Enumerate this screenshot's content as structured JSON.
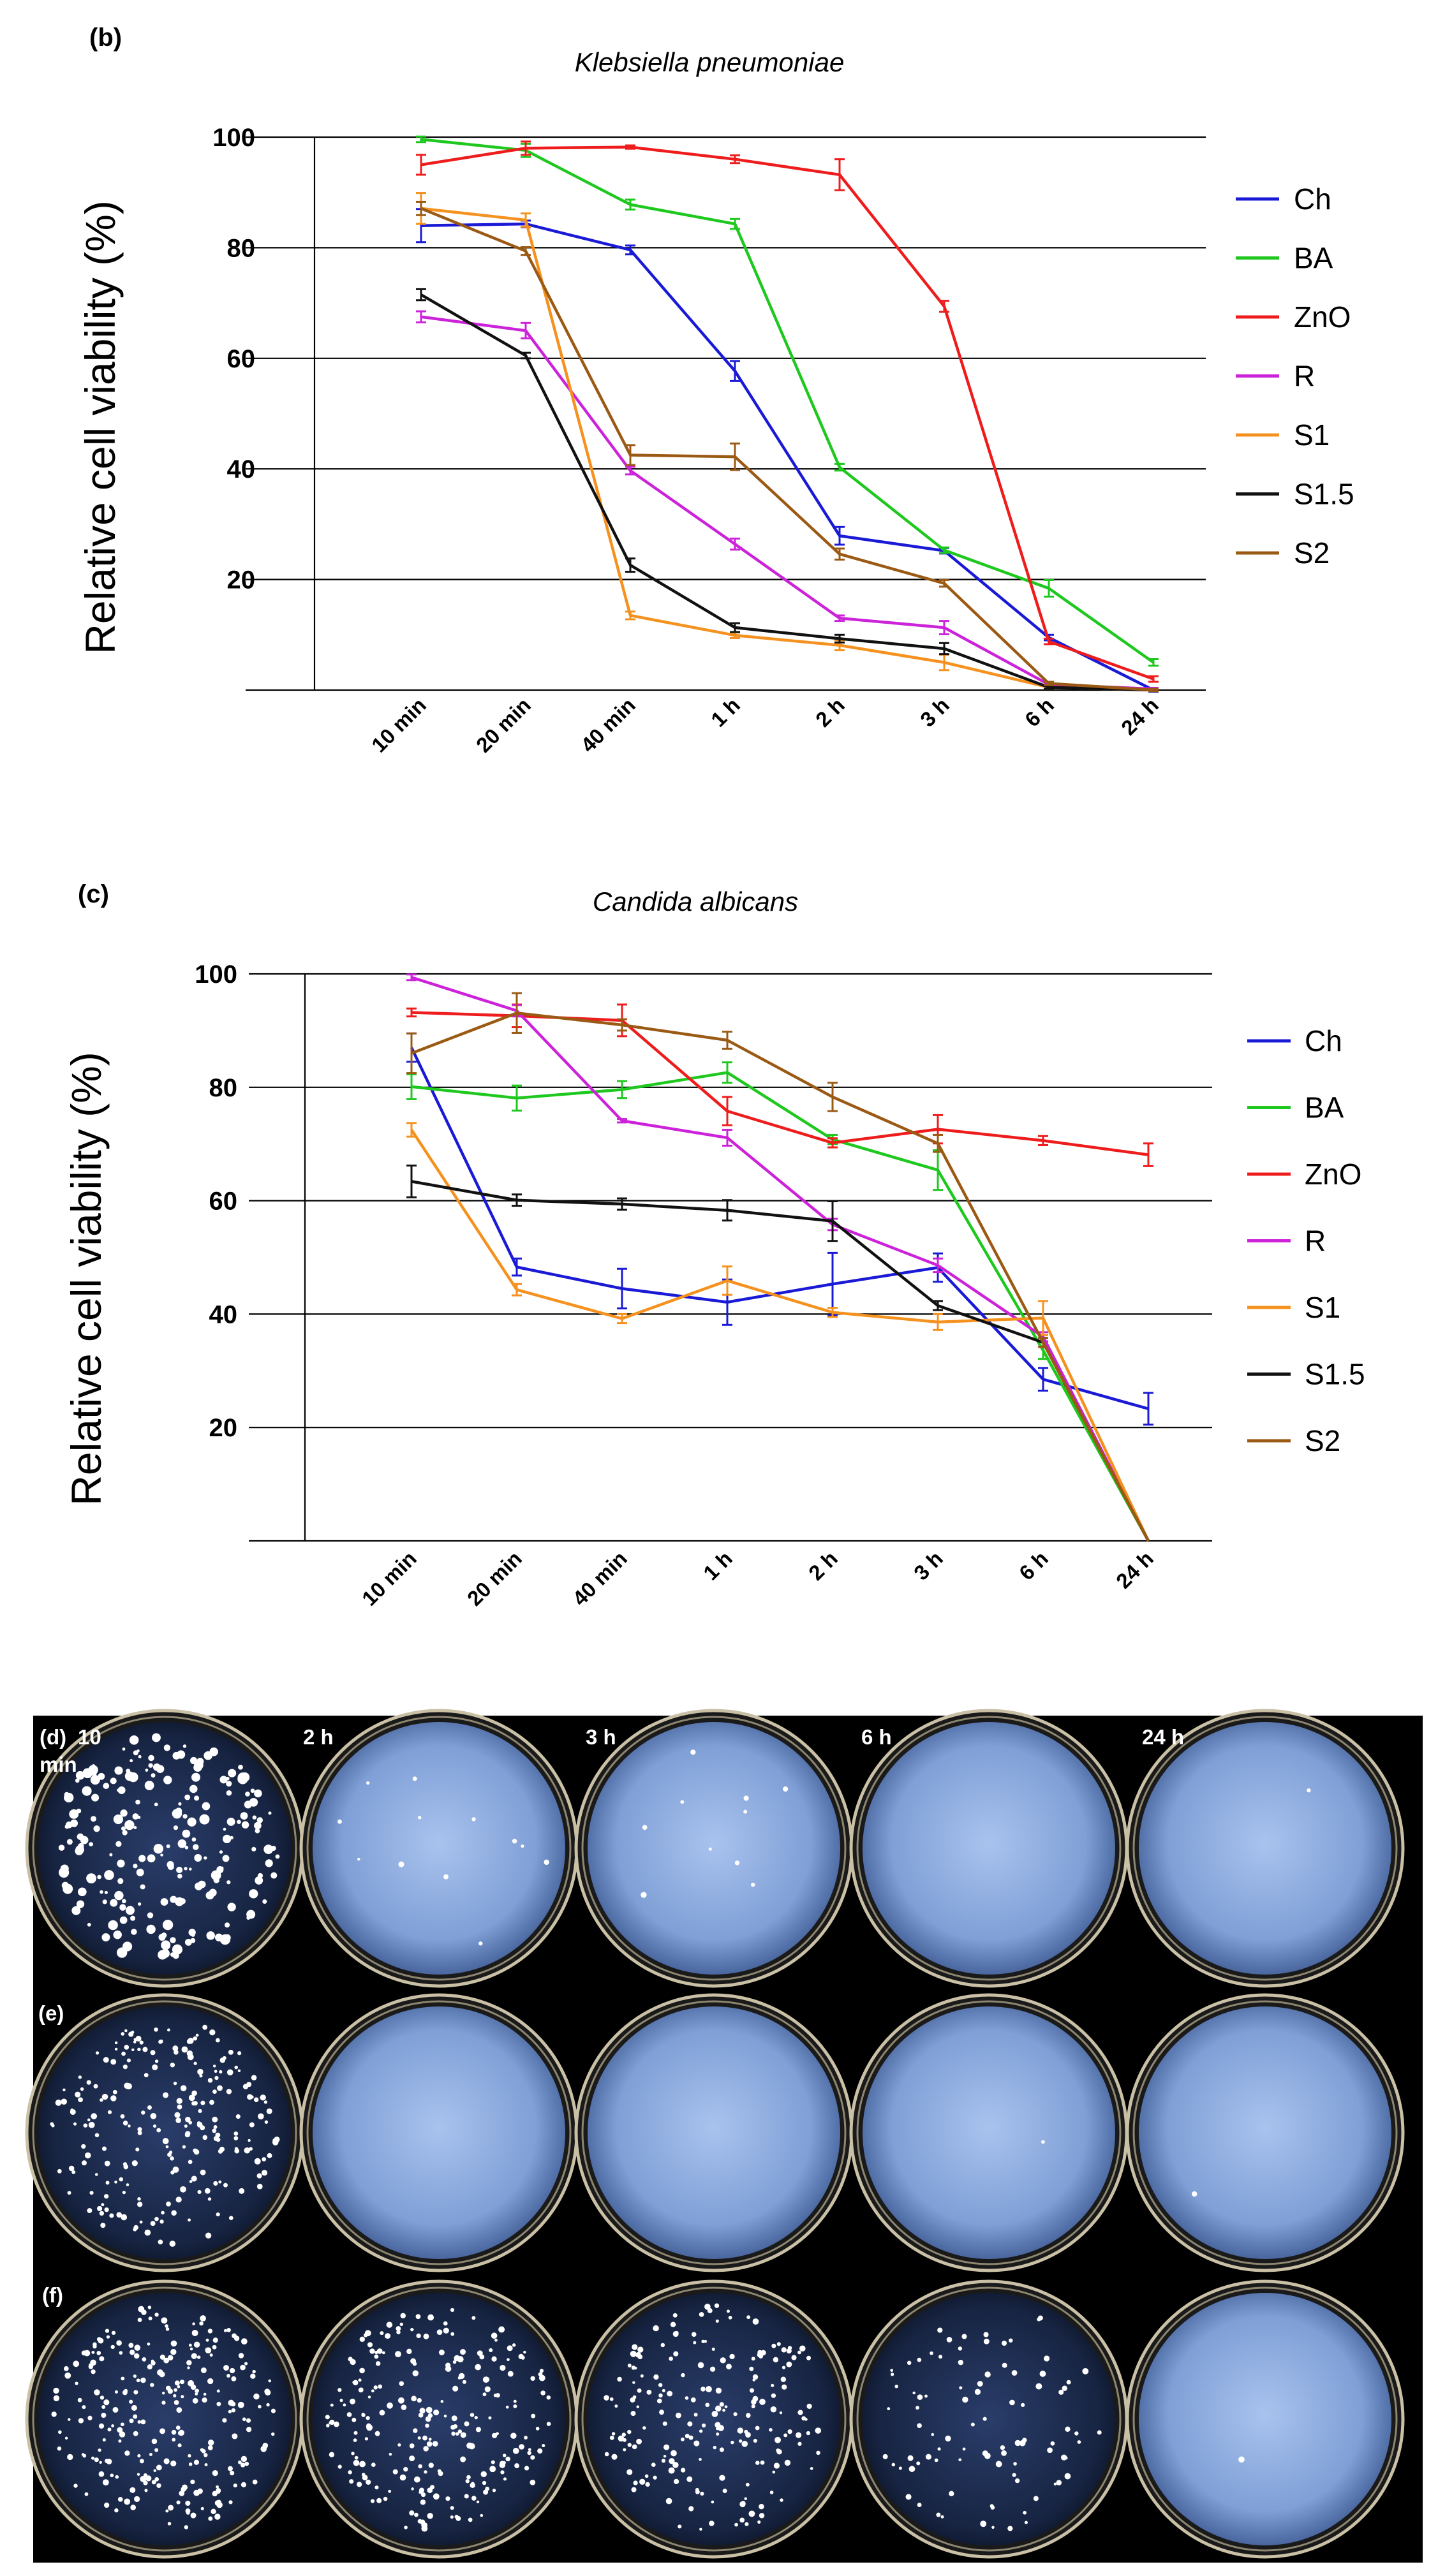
{
  "chart_data": [
    {
      "type": "line",
      "panel_label": "(b)",
      "title": "Klebsiella pneumoniae",
      "xlabel": "",
      "ylabel": "Relative cell viability (%)",
      "categories": [
        "10 min",
        "20 min",
        "40 min",
        "1 h",
        "2 h",
        "3 h",
        "6 h",
        "24 h"
      ],
      "ylim": [
        0,
        100
      ],
      "yticks": [
        20,
        40,
        60,
        80,
        100
      ],
      "grid": "horizontal",
      "legend_position": "right",
      "series": [
        {
          "name": "Ch",
          "color": "#1a1ad6",
          "values": [
            84,
            84.3,
            79.6,
            57.7,
            27.9,
            25.2,
            9.5,
            0
          ],
          "errors": [
            3,
            0.6,
            0.8,
            1.8,
            1.6,
            0.5,
            0.5,
            0.3
          ]
        },
        {
          "name": " BA",
          "color": "#1ec81e",
          "values": [
            99.6,
            97.6,
            87.8,
            84.3,
            40.3,
            25.3,
            18.4,
            5
          ],
          "errors": [
            0.5,
            1.2,
            0.9,
            0.9,
            0.6,
            0.5,
            1.5,
            0.6
          ]
        },
        {
          "name": "ZnO",
          "color": "#ee1c1c",
          "values": [
            95,
            98,
            98.2,
            96,
            93.2,
            69.4,
            8.8,
            2
          ],
          "errors": [
            1.8,
            1.2,
            0.3,
            0.7,
            2.8,
            1,
            0.5,
            0.5
          ]
        },
        {
          "name": "R",
          "color": "#cc22d9",
          "values": [
            67.5,
            65,
            39.7,
            26.4,
            13,
            11.3,
            1,
            0.2
          ],
          "errors": [
            1,
            1.4,
            0.7,
            1,
            0.5,
            1.2,
            0.3,
            0.2
          ]
        },
        {
          "name": "S1",
          "color": "#f5911e",
          "values": [
            87.1,
            85,
            13.5,
            9.9,
            8.1,
            5,
            0.5,
            0
          ],
          "errors": [
            2.8,
            1.2,
            0.7,
            0.5,
            0.9,
            1.4,
            0.3,
            0.2
          ]
        },
        {
          "name": "S1.5",
          "color": "#111111",
          "values": [
            71.5,
            60.5,
            22.6,
            11.3,
            9.3,
            7.5,
            0.5,
            0
          ],
          "errors": [
            1,
            0.5,
            1.2,
            0.8,
            0.7,
            1,
            0.3,
            0.2
          ]
        },
        {
          "name": "S2",
          "color": "#9b5a14",
          "values": [
            87.1,
            79.4,
            42.5,
            42.2,
            24.6,
            19.3,
            1.2,
            0
          ],
          "errors": [
            1.2,
            0.7,
            1.8,
            2.4,
            1,
            0.6,
            0.3,
            0.2
          ]
        }
      ]
    },
    {
      "type": "line",
      "panel_label": "(c)",
      "title": "Candida albicans",
      "xlabel": "",
      "ylabel": "Relative cell viability (%)",
      "categories": [
        "10 min",
        "20 min",
        "40 min",
        "1 h",
        "2 h",
        "3 h",
        "6 h",
        "24 h"
      ],
      "ylim": [
        0,
        100
      ],
      "yticks": [
        20,
        40,
        60,
        80,
        100
      ],
      "grid": "horizontal",
      "legend_position": "right",
      "series": [
        {
          "name": "Ch",
          "color": "#1a1ad6",
          "values": [
            87,
            48.3,
            44.5,
            42.1,
            45.3,
            48.2,
            28.5,
            23.3
          ],
          "errors": [
            2.5,
            1.5,
            3.5,
            4,
            5.5,
            2.5,
            2,
            2.8
          ]
        },
        {
          "name": " BA",
          "color": "#1ec81e",
          "values": [
            80.1,
            78.1,
            79.6,
            82.6,
            70.8,
            65.4,
            33.6,
            0
          ],
          "errors": [
            2.2,
            2.2,
            1.5,
            1.8,
            0.8,
            3.5,
            1.5,
            0
          ]
        },
        {
          "name": "ZnO",
          "color": "#ee1c1c",
          "values": [
            93.2,
            92.6,
            91.8,
            75.8,
            70.2,
            72.6,
            70.6,
            68.1
          ],
          "errors": [
            0.7,
            2,
            2.8,
            2.5,
            0.8,
            2.5,
            0.8,
            2
          ]
        },
        {
          "name": "R",
          "color": "#cc22d9",
          "values": [
            99.4,
            93.5,
            74.1,
            71.1,
            55.8,
            48.6,
            36,
            0
          ],
          "errors": [
            0.5,
            1,
            0.3,
            1.4,
            1,
            1.2,
            0.8,
            0
          ]
        },
        {
          "name": "S1",
          "color": "#f5911e",
          "values": [
            72.5,
            44.3,
            39.2,
            45.9,
            40.3,
            38.6,
            39.3,
            0
          ],
          "errors": [
            1.2,
            1,
            0.8,
            2.5,
            0.8,
            1.4,
            3,
            0
          ]
        },
        {
          "name": "S1.5",
          "color": "#111111",
          "values": [
            63.4,
            60.1,
            59.4,
            58.3,
            56.4,
            41.5,
            35,
            0
          ],
          "errors": [
            2.8,
            1,
            1,
            1.8,
            3.5,
            0.8,
            0.8,
            0
          ]
        },
        {
          "name": "S2",
          "color": "#9b5a14",
          "values": [
            86,
            93.1,
            91,
            88.3,
            78.3,
            70.1,
            35,
            0
          ],
          "errors": [
            3.5,
            3.5,
            1,
            1.5,
            2.5,
            1.5,
            0.8,
            0
          ]
        }
      ]
    }
  ],
  "photo_grid": {
    "label_d": "(d)",
    "label_e": "(e)",
    "label_f": "(f)",
    "time_10": "10",
    "time_min": "min",
    "time_2h": "2 h",
    "time_3h": "3 h",
    "time_6h": "6 h",
    "time_24h": "24 h",
    "colony_density": [
      [
        220,
        12,
        10,
        0,
        1
      ],
      [
        230,
        0,
        0,
        1,
        1
      ],
      [
        260,
        240,
        200,
        90,
        1
      ]
    ]
  }
}
